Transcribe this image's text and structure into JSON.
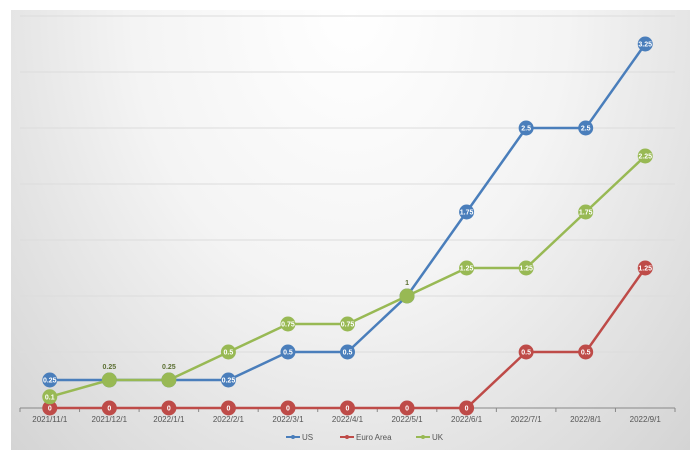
{
  "chart_data": {
    "type": "line",
    "title": "",
    "xlabel": "",
    "ylabel": "",
    "categories": [
      "2021/11/1",
      "2021/12/1",
      "2022/1/1",
      "2022/2/1",
      "2022/3/1",
      "2022/4/1",
      "2022/5/1",
      "2022/6/1",
      "2022/7/1",
      "2022/8/1",
      "2022/9/1"
    ],
    "ylim": [
      0,
      3.5
    ],
    "grid": true,
    "legend": "bottom",
    "series": [
      {
        "name": "US",
        "color": "#4a7ebb",
        "values": [
          0.25,
          0.25,
          0.25,
          0.25,
          0.5,
          0.5,
          1,
          1.75,
          2.5,
          2.5,
          3.25
        ]
      },
      {
        "name": "Euro Area",
        "color": "#be4b48",
        "values": [
          0,
          0,
          0,
          0,
          0,
          0,
          0,
          0,
          0.5,
          0.5,
          1.25
        ]
      },
      {
        "name": "UK",
        "color": "#98b954",
        "values": [
          0.1,
          0.25,
          0.25,
          0.5,
          0.75,
          0.75,
          1,
          1.25,
          1.25,
          1.75,
          2.25
        ]
      }
    ]
  }
}
